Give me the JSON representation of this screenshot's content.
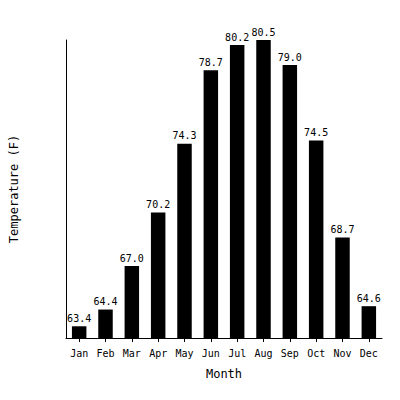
{
  "chart_data": {
    "type": "bar",
    "x_label": "Month",
    "y_label": "Temperature (F)",
    "categories": [
      "Jan",
      "Feb",
      "Mar",
      "Apr",
      "May",
      "Jun",
      "Jul",
      "Aug",
      "Sep",
      "Oct",
      "Nov",
      "Dec"
    ],
    "values": [
      63.4,
      64.4,
      67.0,
      70.2,
      74.3,
      78.7,
      80.2,
      80.5,
      79.0,
      74.5,
      68.7,
      64.6
    ],
    "value_labels": [
      "63.4",
      "64.4",
      "67.0",
      "70.2",
      "74.3",
      "78.7",
      "80.2",
      "80.5",
      "79.0",
      "74.5",
      "68.7",
      "64.6"
    ],
    "color": "#000000",
    "ylim": [
      62.7,
      80.5
    ],
    "grid": false,
    "data_labels": true,
    "tick_labels": "x"
  }
}
